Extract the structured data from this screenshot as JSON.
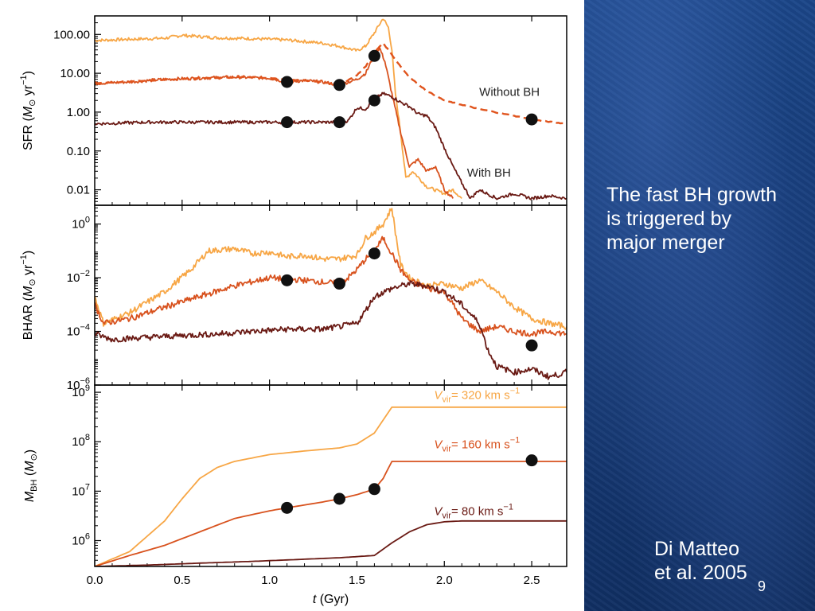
{
  "colors": {
    "v320": "#f7a645",
    "v160": "#d8521e",
    "v80": "#6a1a14",
    "without_bh": "#e0541d",
    "marker": "#111111",
    "frame": "#000000",
    "slide_bg": "#163b78",
    "slide_text": "#ffffff"
  },
  "side_panel": {
    "caption_lines": [
      "The fast BH growth",
      "is triggered by",
      "major merger"
    ],
    "citation_lines": [
      "Di Matteo",
      "et al. 2005"
    ],
    "slide_number": "9"
  },
  "chart_data": [
    {
      "type": "line",
      "panel": "SFR",
      "ylabel_parts": [
        "SFR (",
        "M",
        "⊙",
        " yr",
        "−1",
        ")"
      ],
      "yscale": "log",
      "ylim": [
        0.004,
        300
      ],
      "xlim": [
        0,
        2.7
      ],
      "yticks": [
        0.01,
        0.1,
        1,
        10,
        100
      ],
      "ytick_labels": [
        "0.01",
        "0.10",
        "1.00",
        "10.00",
        "100.00"
      ],
      "annotations": [
        {
          "text": "Without BH",
          "x": 2.2,
          "y": 2.6
        },
        {
          "text": "With BH",
          "x": 2.13,
          "y": 0.022
        }
      ],
      "series": [
        {
          "key": "v320",
          "points": [
            [
              0,
              70
            ],
            [
              0.2,
              75
            ],
            [
              0.4,
              80
            ],
            [
              0.5,
              95
            ],
            [
              0.7,
              82
            ],
            [
              0.9,
              78
            ],
            [
              1.1,
              72
            ],
            [
              1.3,
              60
            ],
            [
              1.4,
              50
            ],
            [
              1.5,
              38
            ],
            [
              1.55,
              50
            ],
            [
              1.6,
              110
            ],
            [
              1.65,
              260
            ],
            [
              1.68,
              150
            ],
            [
              1.7,
              40
            ],
            [
              1.72,
              3
            ],
            [
              1.75,
              0.3
            ],
            [
              1.78,
              0.02
            ],
            [
              1.82,
              0.03
            ],
            [
              1.9,
              0.012
            ],
            [
              2.0,
              0.008
            ],
            [
              2.05,
              0.01
            ],
            [
              2.1,
              0.006
            ]
          ]
        },
        {
          "key": "v160",
          "points": [
            [
              0,
              5.5
            ],
            [
              0.2,
              6
            ],
            [
              0.4,
              7
            ],
            [
              0.6,
              7.5
            ],
            [
              0.8,
              8
            ],
            [
              1.0,
              7.5
            ],
            [
              1.1,
              6
            ],
            [
              1.2,
              6.5
            ],
            [
              1.3,
              6
            ],
            [
              1.4,
              5
            ],
            [
              1.5,
              7
            ],
            [
              1.55,
              10
            ],
            [
              1.6,
              30
            ],
            [
              1.63,
              45
            ],
            [
              1.66,
              20
            ],
            [
              1.7,
              3
            ],
            [
              1.75,
              0.3
            ],
            [
              1.8,
              0.04
            ],
            [
              1.85,
              0.06
            ],
            [
              1.9,
              0.03
            ],
            [
              1.95,
              0.04
            ],
            [
              2.0,
              0.01
            ],
            [
              2.05,
              0.006
            ]
          ]
        },
        {
          "key": "v80",
          "points": [
            [
              0,
              0.5
            ],
            [
              0.3,
              0.55
            ],
            [
              0.6,
              0.55
            ],
            [
              0.9,
              0.55
            ],
            [
              1.1,
              0.55
            ],
            [
              1.3,
              0.55
            ],
            [
              1.4,
              0.55
            ],
            [
              1.45,
              0.6
            ],
            [
              1.5,
              1.3
            ],
            [
              1.55,
              1.2
            ],
            [
              1.6,
              2.2
            ],
            [
              1.65,
              3
            ],
            [
              1.7,
              2.5
            ],
            [
              1.75,
              1.8
            ],
            [
              1.8,
              1.4
            ],
            [
              1.85,
              0.9
            ],
            [
              1.9,
              0.8
            ],
            [
              1.95,
              0.4
            ],
            [
              2.0,
              0.12
            ],
            [
              2.05,
              0.04
            ],
            [
              2.1,
              0.015
            ],
            [
              2.15,
              0.006
            ],
            [
              2.2,
              0.01
            ],
            [
              2.3,
              0.006
            ],
            [
              2.4,
              0.008
            ],
            [
              2.5,
              0.006
            ],
            [
              2.6,
              0.007
            ],
            [
              2.7,
              0.006
            ]
          ]
        },
        {
          "key": "without_bh",
          "dashed": true,
          "points": [
            [
              0,
              5.5
            ],
            [
              0.3,
              6.5
            ],
            [
              0.6,
              7.5
            ],
            [
              0.9,
              8
            ],
            [
              1.1,
              7
            ],
            [
              1.3,
              6
            ],
            [
              1.4,
              5
            ],
            [
              1.5,
              9
            ],
            [
              1.55,
              15
            ],
            [
              1.6,
              35
            ],
            [
              1.65,
              60
            ],
            [
              1.7,
              30
            ],
            [
              1.75,
              15
            ],
            [
              1.8,
              8
            ],
            [
              1.9,
              3.5
            ],
            [
              2.0,
              2
            ],
            [
              2.2,
              1.2
            ],
            [
              2.4,
              0.8
            ],
            [
              2.55,
              0.6
            ],
            [
              2.7,
              0.5
            ]
          ]
        }
      ],
      "markers": [
        [
          1.1,
          6
        ],
        [
          1.4,
          5
        ],
        [
          1.6,
          28
        ],
        [
          1.1,
          0.55
        ],
        [
          1.4,
          0.55
        ],
        [
          1.6,
          2
        ],
        [
          2.5,
          0.65
        ]
      ]
    },
    {
      "type": "line",
      "panel": "BHAR",
      "ylabel_parts": [
        "BHAR (",
        "M",
        "⊙",
        " yr",
        "−1",
        ")"
      ],
      "yscale": "log",
      "ylim": [
        1e-06,
        5
      ],
      "xlim": [
        0,
        2.7
      ],
      "yticks": [
        1e-06,
        0.0001,
        0.01,
        1
      ],
      "ytick_labels": [
        {
          "base": "10",
          "exp": "−6"
        },
        {
          "base": "10",
          "exp": "−4"
        },
        {
          "base": "10",
          "exp": "−2"
        },
        {
          "base": "10",
          "exp": "0"
        }
      ],
      "series": [
        {
          "key": "v320",
          "points": [
            [
              0,
              0.002
            ],
            [
              0.05,
              0.0002
            ],
            [
              0.2,
              0.0005
            ],
            [
              0.4,
              0.003
            ],
            [
              0.55,
              0.02
            ],
            [
              0.65,
              0.1
            ],
            [
              0.8,
              0.12
            ],
            [
              0.9,
              0.08
            ],
            [
              1.0,
              0.09
            ],
            [
              1.1,
              0.06
            ],
            [
              1.2,
              0.07
            ],
            [
              1.3,
              0.05
            ],
            [
              1.4,
              0.05
            ],
            [
              1.5,
              0.07
            ],
            [
              1.55,
              0.3
            ],
            [
              1.6,
              0.5
            ],
            [
              1.65,
              1.0
            ],
            [
              1.7,
              4
            ],
            [
              1.72,
              0.5
            ],
            [
              1.75,
              0.03
            ],
            [
              1.8,
              0.01
            ],
            [
              1.9,
              0.005
            ],
            [
              2.0,
              0.006
            ],
            [
              2.1,
              0.004
            ],
            [
              2.2,
              0.008
            ],
            [
              2.3,
              0.003
            ],
            [
              2.4,
              0.0008
            ],
            [
              2.5,
              0.0003
            ],
            [
              2.6,
              0.0002
            ],
            [
              2.7,
              0.00015
            ]
          ]
        },
        {
          "key": "v160",
          "points": [
            [
              0,
              0.001
            ],
            [
              0.05,
              0.0002
            ],
            [
              0.2,
              0.0003
            ],
            [
              0.4,
              0.0008
            ],
            [
              0.6,
              0.002
            ],
            [
              0.8,
              0.005
            ],
            [
              1.0,
              0.01
            ],
            [
              1.1,
              0.009
            ],
            [
              1.2,
              0.008
            ],
            [
              1.3,
              0.007
            ],
            [
              1.4,
              0.006
            ],
            [
              1.45,
              0.01
            ],
            [
              1.5,
              0.02
            ],
            [
              1.55,
              0.05
            ],
            [
              1.6,
              0.1
            ],
            [
              1.65,
              0.3
            ],
            [
              1.7,
              0.08
            ],
            [
              1.75,
              0.02
            ],
            [
              1.8,
              0.008
            ],
            [
              1.9,
              0.004
            ],
            [
              2.0,
              0.003
            ],
            [
              2.05,
              0.001
            ],
            [
              2.1,
              0.0003
            ],
            [
              2.2,
              0.0001
            ],
            [
              2.3,
              0.00015
            ],
            [
              2.4,
              0.0001
            ],
            [
              2.5,
              8e-05
            ],
            [
              2.6,
              0.0001
            ],
            [
              2.7,
              8e-05
            ]
          ]
        },
        {
          "key": "v80",
          "points": [
            [
              0,
              8e-05
            ],
            [
              0.1,
              5e-05
            ],
            [
              0.3,
              6e-05
            ],
            [
              0.5,
              7e-05
            ],
            [
              0.7,
              8e-05
            ],
            [
              0.9,
              0.0001
            ],
            [
              1.1,
              0.00012
            ],
            [
              1.3,
              0.00012
            ],
            [
              1.4,
              0.00015
            ],
            [
              1.5,
              0.0002
            ],
            [
              1.55,
              0.0006
            ],
            [
              1.6,
              0.002
            ],
            [
              1.7,
              0.004
            ],
            [
              1.8,
              0.006
            ],
            [
              1.9,
              0.005
            ],
            [
              2.0,
              0.003
            ],
            [
              2.1,
              0.001
            ],
            [
              2.2,
              0.0002
            ],
            [
              2.25,
              2e-05
            ],
            [
              2.3,
              5e-06
            ],
            [
              2.4,
              3e-06
            ],
            [
              2.5,
              4e-06
            ],
            [
              2.6,
              2e-06
            ],
            [
              2.7,
              3e-06
            ]
          ]
        }
      ],
      "markers": [
        [
          1.1,
          0.008
        ],
        [
          1.4,
          0.006
        ],
        [
          1.6,
          0.08
        ],
        [
          2.5,
          3e-05
        ]
      ]
    },
    {
      "type": "line",
      "panel": "MBH",
      "ylabel_parts": [
        "M",
        "BH",
        " (",
        "M",
        "⊙",
        ")"
      ],
      "xlabel_parts": [
        "t",
        " (Gyr)"
      ],
      "yscale": "log",
      "ylim": [
        300000,
        1400000000
      ],
      "xlim": [
        0,
        2.7
      ],
      "xticks": [
        0,
        0.5,
        1,
        1.5,
        2,
        2.5
      ],
      "xtick_labels": [
        "0.0",
        "0.5",
        "1.0",
        "1.5",
        "2.0",
        "2.5"
      ],
      "yticks": [
        1000000,
        10000000,
        100000000,
        1000000000
      ],
      "ytick_labels": [
        {
          "base": "10",
          "exp": "6"
        },
        {
          "base": "10",
          "exp": "7"
        },
        {
          "base": "10",
          "exp": "8"
        },
        {
          "base": "10",
          "exp": "9"
        }
      ],
      "annotations": [
        {
          "key": "v320",
          "v": "V",
          "sub": "vir",
          "rest": "= 320 km s",
          "exp": "−1",
          "x": 1.85,
          "y": 850000000
        },
        {
          "key": "v160",
          "v": "V",
          "sub": "vir",
          "rest": "= 160 km s",
          "exp": "−1",
          "x": 1.85,
          "y": 85000000
        },
        {
          "key": "v80",
          "v": "V",
          "sub": "vir",
          "rest": "= 80 km s",
          "exp": "−1",
          "x": 1.85,
          "y": 3800000
        }
      ],
      "series": [
        {
          "key": "v320",
          "points": [
            [
              0,
              300000
            ],
            [
              0.2,
              600000
            ],
            [
              0.4,
              2500000
            ],
            [
              0.5,
              7000000
            ],
            [
              0.6,
              18000000
            ],
            [
              0.7,
              30000000
            ],
            [
              0.8,
              40000000
            ],
            [
              1.0,
              55000000
            ],
            [
              1.2,
              65000000
            ],
            [
              1.4,
              75000000
            ],
            [
              1.5,
              90000000
            ],
            [
              1.6,
              150000000
            ],
            [
              1.7,
              500000000
            ],
            [
              2.7,
              500000000
            ]
          ]
        },
        {
          "key": "v160",
          "points": [
            [
              0,
              300000
            ],
            [
              0.2,
              500000
            ],
            [
              0.4,
              800000
            ],
            [
              0.6,
              1500000
            ],
            [
              0.8,
              2800000
            ],
            [
              1.0,
              4000000
            ],
            [
              1.1,
              4600000
            ],
            [
              1.3,
              6000000
            ],
            [
              1.4,
              7000000
            ],
            [
              1.5,
              8500000
            ],
            [
              1.6,
              11000000
            ],
            [
              1.65,
              18000000
            ],
            [
              1.7,
              40000000
            ],
            [
              2.7,
              40000000
            ]
          ]
        },
        {
          "key": "v80",
          "points": [
            [
              0,
              300000
            ],
            [
              0.3,
              320000
            ],
            [
              0.6,
              350000
            ],
            [
              0.9,
              380000
            ],
            [
              1.2,
              420000
            ],
            [
              1.4,
              450000
            ],
            [
              1.6,
              500000
            ],
            [
              1.7,
              900000
            ],
            [
              1.8,
              1500000
            ],
            [
              1.9,
              2100000
            ],
            [
              2.0,
              2400000
            ],
            [
              2.1,
              2500000
            ],
            [
              2.7,
              2500000
            ]
          ]
        }
      ],
      "markers": [
        [
          1.1,
          4600000
        ],
        [
          1.4,
          7000000
        ],
        [
          1.6,
          11000000
        ],
        [
          2.5,
          42000000
        ]
      ]
    }
  ]
}
